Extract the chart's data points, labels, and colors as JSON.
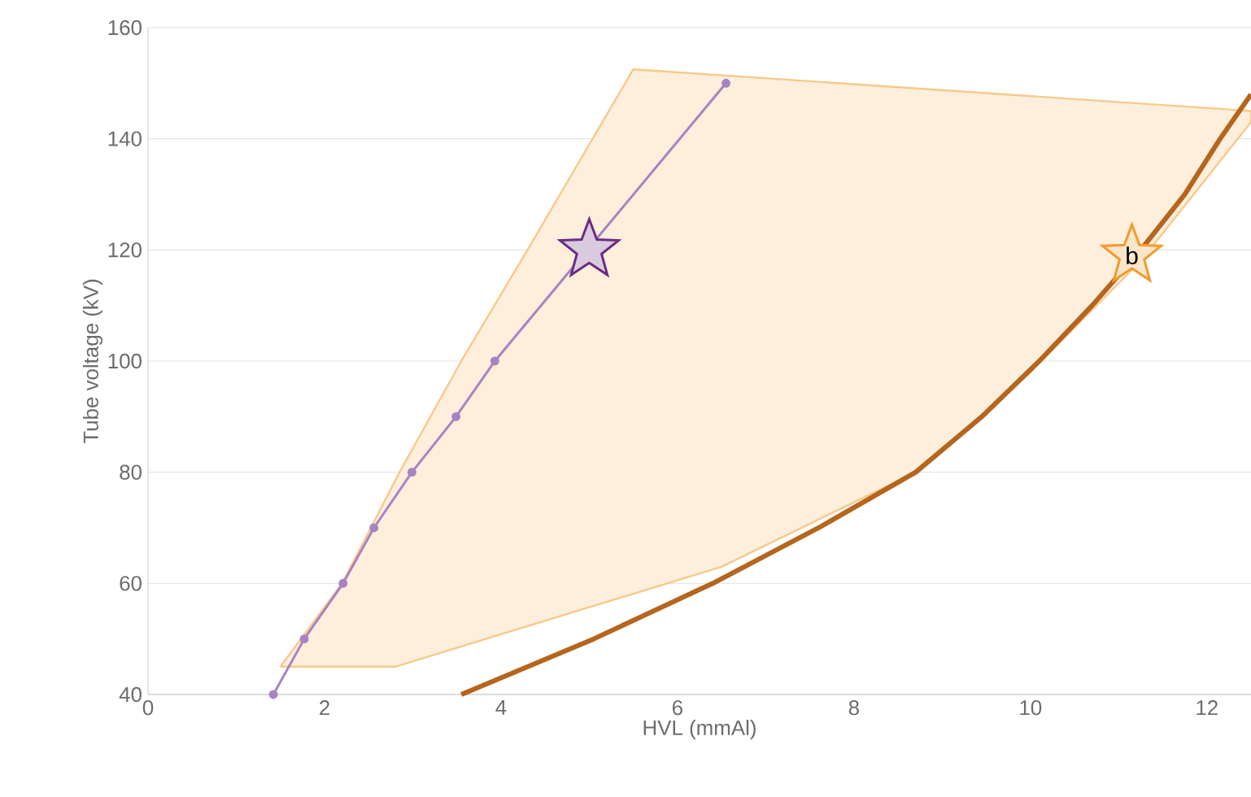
{
  "chart_data": {
    "type": "line",
    "xlabel": "HVL (mmAl)",
    "ylabel": "Tube voltage (kV)",
    "xlim": [
      0,
      12.5
    ],
    "ylim": [
      40,
      160
    ],
    "xticks": [
      0,
      2,
      4,
      6,
      8,
      10,
      12
    ],
    "yticks": [
      40,
      60,
      80,
      100,
      120,
      140,
      160
    ],
    "grid": "y",
    "series": [
      {
        "type": "area",
        "color": "#f8c98a",
        "x": [
          1.5,
          2.8,
          6.5,
          8.7,
          10,
          11.25,
          12.5,
          12.5,
          5.5,
          4.3,
          3.55,
          2.85,
          2.2,
          1.5
        ],
        "values": [
          45,
          45,
          63,
          80,
          98,
          118,
          143,
          145,
          152.5,
          120,
          100,
          80,
          60,
          45
        ]
      },
      {
        "color": "#b5651d",
        "marker": "none",
        "x": [
          3.55,
          5.05,
          6.4,
          7.6,
          8.7,
          9.45,
          10.1,
          10.7,
          11.25,
          11.75,
          12.15,
          12.5
        ],
        "values": [
          40,
          50,
          60,
          70,
          80,
          90,
          100,
          110,
          120,
          130,
          140,
          148
        ]
      },
      {
        "color": "#a883c3",
        "marker": "circle",
        "x": [
          1.42,
          1.77,
          2.21,
          2.56,
          2.99,
          3.49,
          3.93,
          6.55
        ],
        "values": [
          40,
          50,
          60,
          70,
          80,
          90,
          100,
          150
        ]
      },
      {
        "type": "scatter",
        "color": "#6b2c80",
        "marker": "star",
        "x": [
          5
        ],
        "values": [
          120
        ]
      },
      {
        "type": "scatter",
        "color": "#f29a2e",
        "marker": "star",
        "x": [
          11.15
        ],
        "values": [
          119
        ]
      }
    ],
    "annotations": [
      {
        "text": "b",
        "x": 11.15,
        "y": 119
      }
    ]
  }
}
